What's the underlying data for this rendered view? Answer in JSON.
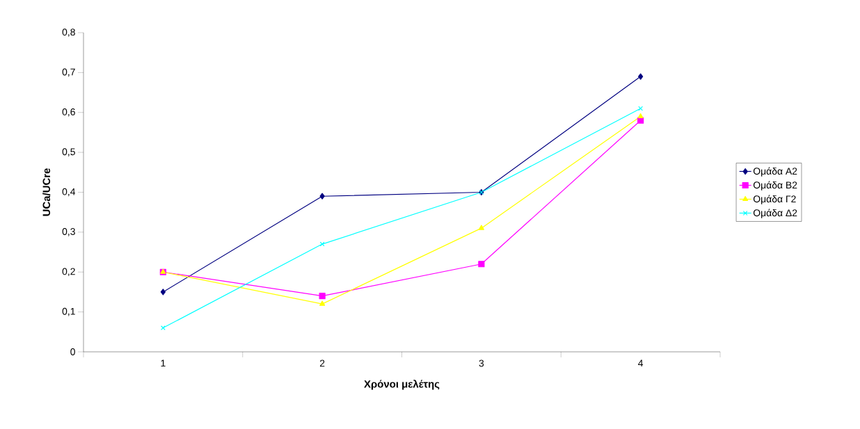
{
  "chart_data": {
    "type": "line",
    "xlabel": "Χρόνοι μελέτης",
    "ylabel": "UCa/UCre",
    "categories": [
      "1",
      "2",
      "3",
      "4"
    ],
    "series": [
      {
        "name": "Ομάδα Α2",
        "color": "#000080",
        "marker": "diamond",
        "values": [
          0.15,
          0.39,
          0.4,
          0.69
        ]
      },
      {
        "name": "Ομάδα Β2",
        "color": "#ff00ff",
        "marker": "square",
        "values": [
          0.2,
          0.14,
          0.22,
          0.58
        ]
      },
      {
        "name": "Ομάδα Γ2",
        "color": "#ffff00",
        "marker": "triangle",
        "values": [
          0.2,
          0.12,
          0.31,
          0.59
        ]
      },
      {
        "name": "Ομάδα Δ2",
        "color": "#00ffff",
        "marker": "cross",
        "values": [
          0.06,
          0.27,
          0.4,
          0.61
        ]
      }
    ],
    "ylim": [
      0,
      0.8
    ],
    "yticks": [
      0,
      {
        "value": 0.1,
        "label": "0,1"
      },
      {
        "value": 0.2,
        "label": "0,2"
      },
      {
        "value": 0.3,
        "label": "0,3"
      },
      {
        "value": 0.4,
        "label": "0,4"
      },
      {
        "value": 0.5,
        "label": "0,5"
      },
      {
        "value": 0.6,
        "label": "0,6"
      },
      {
        "value": 0.7,
        "label": "0,7"
      },
      {
        "value": 0.8,
        "label": "0,8"
      }
    ],
    "grid": false,
    "legend": "right",
    "line_style": "solid"
  }
}
